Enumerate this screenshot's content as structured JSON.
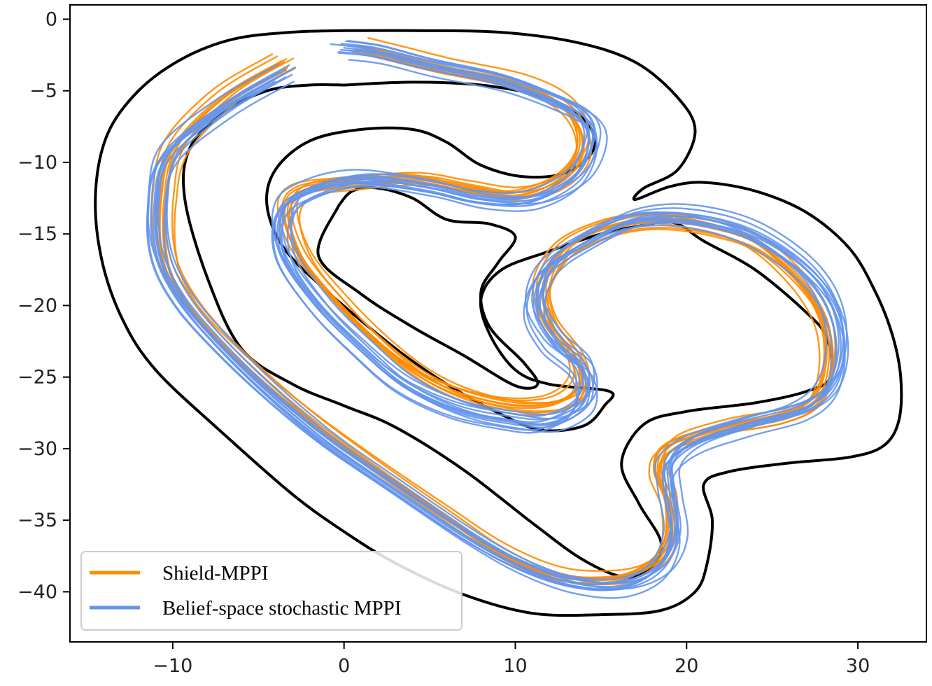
{
  "chart_data": {
    "type": "line",
    "xlim": [
      -16,
      34
    ],
    "ylim": [
      -43.5,
      1
    ],
    "x_ticks": [
      -10,
      0,
      10,
      20,
      30
    ],
    "y_ticks": [
      0,
      -5,
      -10,
      -15,
      -20,
      -25,
      -30,
      -35,
      -40
    ],
    "x_tick_labels": [
      "−10",
      "0",
      "10",
      "20",
      "30"
    ],
    "y_tick_labels": [
      "0",
      "−5",
      "−10",
      "−15",
      "−20",
      "−25",
      "−30",
      "−35",
      "−40"
    ],
    "grid": false,
    "legend_position": "lower-left",
    "legend": [
      {
        "label": "Shield-MPPI",
        "color": "#ff8c00"
      },
      {
        "label": "Belief-space stochastic MPPI",
        "color": "#6495ed"
      }
    ],
    "colors": {
      "boundary": "#000000",
      "shield": "#ff8c00",
      "belief": "#6495ed"
    },
    "track_boundaries": [
      {
        "part": "outer",
        "points": [
          [
            0,
            -0.8
          ],
          [
            4,
            -0.8
          ],
          [
            9,
            -0.9
          ],
          [
            13.5,
            -1.6
          ],
          [
            17,
            -3
          ],
          [
            19.5,
            -5.5
          ],
          [
            20.5,
            -7.8
          ],
          [
            19.5,
            -10.5
          ],
          [
            17.5,
            -11.8
          ],
          [
            17,
            -12.6
          ],
          [
            19,
            -11.7
          ],
          [
            21,
            -11.4
          ],
          [
            24,
            -12
          ],
          [
            27,
            -13.5
          ],
          [
            29.5,
            -16
          ],
          [
            31,
            -19
          ],
          [
            32,
            -22
          ],
          [
            32.5,
            -25
          ],
          [
            32.4,
            -28
          ],
          [
            31.5,
            -29.8
          ],
          [
            29.5,
            -30.6
          ],
          [
            26,
            -31
          ],
          [
            22.5,
            -31.6
          ],
          [
            21,
            -32.5
          ],
          [
            21.5,
            -35
          ],
          [
            21.2,
            -38
          ],
          [
            20.5,
            -40
          ],
          [
            18.5,
            -41.3
          ],
          [
            15,
            -41.6
          ],
          [
            11,
            -41.5
          ],
          [
            7,
            -40.2
          ],
          [
            3,
            -38
          ],
          [
            0,
            -35.8
          ],
          [
            -3,
            -33.2
          ],
          [
            -7,
            -29
          ],
          [
            -11,
            -24.5
          ],
          [
            -13,
            -20.8
          ],
          [
            -14.2,
            -16.5
          ],
          [
            -14.5,
            -12
          ],
          [
            -13.8,
            -8
          ],
          [
            -12,
            -5
          ],
          [
            -9.5,
            -2.8
          ],
          [
            -6.5,
            -1.4
          ],
          [
            -3,
            -0.9
          ],
          [
            0,
            -0.8
          ]
        ]
      },
      {
        "part": "inner",
        "points": [
          [
            0,
            -4.6
          ],
          [
            4,
            -4.4
          ],
          [
            8,
            -4.6
          ],
          [
            11.5,
            -5.4
          ],
          [
            14,
            -7
          ],
          [
            14.6,
            -9
          ],
          [
            13,
            -10.7
          ],
          [
            10.5,
            -11
          ],
          [
            8,
            -10.2
          ],
          [
            6,
            -8.6
          ],
          [
            4,
            -7.7
          ],
          [
            1,
            -7.7
          ],
          [
            -2,
            -8.5
          ],
          [
            -4,
            -10.5
          ],
          [
            -4.5,
            -13
          ],
          [
            -3.5,
            -16
          ],
          [
            -1,
            -19
          ],
          [
            3,
            -23
          ],
          [
            6,
            -25.5
          ],
          [
            9,
            -27.5
          ],
          [
            11.5,
            -28.7
          ],
          [
            14,
            -28.4
          ],
          [
            15.2,
            -27
          ],
          [
            15.5,
            -26
          ],
          [
            12,
            -25.5
          ],
          [
            10,
            -24.5
          ],
          [
            8.5,
            -22
          ],
          [
            8,
            -19.5
          ],
          [
            9.2,
            -17.5
          ],
          [
            12,
            -16.2
          ],
          [
            15,
            -15
          ],
          [
            17,
            -14.5
          ],
          [
            19.2,
            -14.2
          ],
          [
            21,
            -15.5
          ],
          [
            24,
            -17.5
          ],
          [
            27,
            -20.5
          ],
          [
            28.2,
            -22.3
          ],
          [
            28.4,
            -25
          ],
          [
            27,
            -26
          ],
          [
            24,
            -26.8
          ],
          [
            20,
            -27.4
          ],
          [
            17.5,
            -28.3
          ],
          [
            16.2,
            -31
          ],
          [
            17.2,
            -33.8
          ],
          [
            18.5,
            -36.5
          ],
          [
            18,
            -38.2
          ],
          [
            16.5,
            -39
          ],
          [
            14,
            -37.8
          ],
          [
            11,
            -35.2
          ],
          [
            7,
            -31.5
          ],
          [
            3,
            -28.5
          ],
          [
            0,
            -27
          ],
          [
            -3,
            -25.5
          ],
          [
            -6,
            -23
          ],
          [
            -8,
            -18
          ],
          [
            -9.3,
            -12.5
          ],
          [
            -9,
            -9
          ],
          [
            -7,
            -6.5
          ],
          [
            -4.5,
            -5
          ],
          [
            -2,
            -4.6
          ],
          [
            0,
            -4.6
          ]
        ]
      },
      {
        "part": "island",
        "points": [
          [
            -0.3,
            -13
          ],
          [
            0.5,
            -12
          ],
          [
            2,
            -11.8
          ],
          [
            4,
            -12.5
          ],
          [
            6,
            -14
          ],
          [
            8.5,
            -14.3
          ],
          [
            10,
            -15.2
          ],
          [
            9,
            -17
          ],
          [
            8,
            -19
          ],
          [
            8.5,
            -21.5
          ],
          [
            10.5,
            -24
          ],
          [
            11.3,
            -25.5
          ],
          [
            10,
            -25.6
          ],
          [
            7,
            -23.5
          ],
          [
            4,
            -21.5
          ],
          [
            1,
            -19.2
          ],
          [
            -1.5,
            -16.5
          ],
          [
            -0.3,
            -13
          ]
        ]
      }
    ],
    "series": [
      {
        "name": "Shield-MPPI",
        "points": [
          [
            -3.5,
            -3
          ],
          [
            -7,
            -5.5
          ],
          [
            -9.8,
            -9
          ],
          [
            -10.5,
            -12.5
          ],
          [
            -10.5,
            -16
          ],
          [
            -9.8,
            -18.5
          ],
          [
            -8,
            -21.5
          ],
          [
            -5,
            -25
          ],
          [
            -2,
            -28
          ],
          [
            2,
            -31.5
          ],
          [
            6,
            -34.8
          ],
          [
            9,
            -37.2
          ],
          [
            12,
            -38.8
          ],
          [
            14.5,
            -39.2
          ],
          [
            17,
            -38.8
          ],
          [
            18.8,
            -37
          ],
          [
            19,
            -34
          ],
          [
            18.3,
            -31.5
          ],
          [
            19,
            -29.8
          ],
          [
            22,
            -28.6
          ],
          [
            25.5,
            -27.8
          ],
          [
            27.6,
            -26.5
          ],
          [
            28.3,
            -24
          ],
          [
            28,
            -21
          ],
          [
            26.5,
            -18.2
          ],
          [
            24,
            -15.6
          ],
          [
            21,
            -14.4
          ],
          [
            18,
            -14
          ],
          [
            15.5,
            -14.5
          ],
          [
            13,
            -16
          ],
          [
            11.7,
            -18.5
          ],
          [
            12,
            -21
          ],
          [
            13.5,
            -23.5
          ],
          [
            13.8,
            -25.5
          ],
          [
            12.5,
            -26.8
          ],
          [
            10,
            -27
          ],
          [
            7,
            -26.2
          ],
          [
            4.5,
            -24.8
          ],
          [
            2,
            -22.5
          ],
          [
            -0.5,
            -19.5
          ],
          [
            -2.5,
            -16.5
          ],
          [
            -3.3,
            -13.5
          ],
          [
            -2.5,
            -12
          ],
          [
            0,
            -11.5
          ],
          [
            4,
            -11.2
          ],
          [
            7,
            -11.8
          ],
          [
            10,
            -12.3
          ],
          [
            12.5,
            -11.3
          ],
          [
            13.8,
            -9.5
          ],
          [
            13.7,
            -7.5
          ],
          [
            12.5,
            -5.8
          ],
          [
            10,
            -4.5
          ],
          [
            6,
            -3.5
          ],
          [
            3,
            -2.6
          ],
          [
            1,
            -2
          ]
        ],
        "offsets": [
          [
            0,
            0
          ],
          [
            0.4,
            0.2
          ],
          [
            -0.3,
            0.3
          ],
          [
            0.2,
            -0.4
          ],
          [
            -0.4,
            -0.2
          ],
          [
            0.3,
            0.5
          ],
          [
            -0.2,
            0.1
          ],
          [
            0.5,
            -0.3
          ],
          [
            -0.5,
            0.4
          ],
          [
            0.1,
            -0.5
          ]
        ]
      },
      {
        "name": "Belief-space stochastic MPPI",
        "points": [
          [
            -3.5,
            -3.8
          ],
          [
            -7,
            -6.2
          ],
          [
            -10.3,
            -9.5
          ],
          [
            -11,
            -13
          ],
          [
            -10.8,
            -16.5
          ],
          [
            -9.6,
            -19.5
          ],
          [
            -7.5,
            -22.5
          ],
          [
            -4.5,
            -26
          ],
          [
            -1,
            -29.5
          ],
          [
            3,
            -32.8
          ],
          [
            7,
            -36
          ],
          [
            10,
            -38
          ],
          [
            13,
            -39.3
          ],
          [
            16,
            -39.6
          ],
          [
            18.3,
            -38.4
          ],
          [
            19.3,
            -36
          ],
          [
            19,
            -33
          ],
          [
            19,
            -31
          ],
          [
            20.5,
            -29.5
          ],
          [
            23.5,
            -28.3
          ],
          [
            26.8,
            -27.2
          ],
          [
            28.5,
            -25.5
          ],
          [
            29,
            -22.5
          ],
          [
            28.3,
            -19.5
          ],
          [
            26.5,
            -17
          ],
          [
            23.5,
            -14.8
          ],
          [
            20,
            -13.8
          ],
          [
            17,
            -14
          ],
          [
            14.5,
            -15.3
          ],
          [
            12,
            -17.3
          ],
          [
            11.2,
            -20
          ],
          [
            12.2,
            -22.5
          ],
          [
            14,
            -24.5
          ],
          [
            14,
            -26.8
          ],
          [
            12,
            -28.2
          ],
          [
            9.5,
            -28
          ],
          [
            6.5,
            -27.2
          ],
          [
            3.5,
            -25.5
          ],
          [
            1,
            -23
          ],
          [
            -1.5,
            -20
          ],
          [
            -3.5,
            -16.5
          ],
          [
            -3.6,
            -13.5
          ],
          [
            -2,
            -12
          ],
          [
            1,
            -11.2
          ],
          [
            5,
            -11.8
          ],
          [
            8,
            -12.6
          ],
          [
            11,
            -12.6
          ],
          [
            13.5,
            -11
          ],
          [
            14.5,
            -8.5
          ],
          [
            14,
            -6.8
          ],
          [
            12,
            -5.5
          ],
          [
            9,
            -4.2
          ],
          [
            5,
            -3.2
          ],
          [
            2,
            -2.3
          ],
          [
            0,
            -2
          ]
        ],
        "offsets": [
          [
            0,
            0
          ],
          [
            0.5,
            0.3
          ],
          [
            -0.4,
            -0.3
          ],
          [
            0.3,
            0.6
          ],
          [
            -0.6,
            0.2
          ],
          [
            0.2,
            -0.6
          ],
          [
            0.6,
            -0.1
          ],
          [
            -0.3,
            0.5
          ],
          [
            0.4,
            -0.4
          ],
          [
            -0.5,
            -0.5
          ],
          [
            0.1,
            0.4
          ],
          [
            -0.2,
            -0.2
          ]
        ]
      }
    ]
  }
}
